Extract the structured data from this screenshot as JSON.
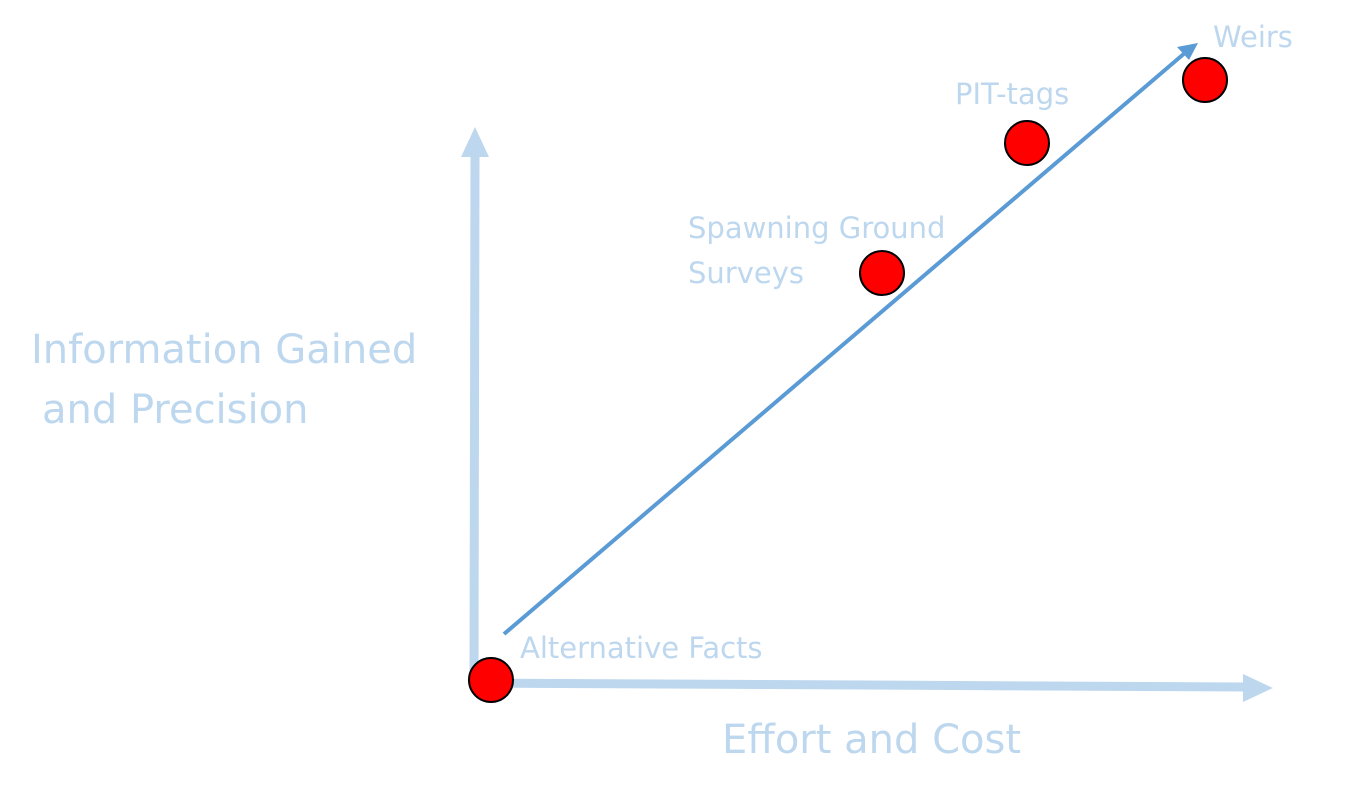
{
  "axes": {
    "y_label_line1": "Information Gained",
    "y_label_line2": "and Precision",
    "x_label": "Effort and Cost"
  },
  "methods": [
    {
      "label": "Alternative Facts"
    },
    {
      "label_line1": "Spawning Ground",
      "label_line2": "Surveys"
    },
    {
      "label": "PIT-tags"
    },
    {
      "label": "Weirs"
    }
  ],
  "colors": {
    "axis": "#bdd7ee",
    "trend_arrow": "#5b9bd5",
    "point_fill": "#ff0000",
    "point_stroke": "#000000",
    "label": "#bdd7ee"
  }
}
